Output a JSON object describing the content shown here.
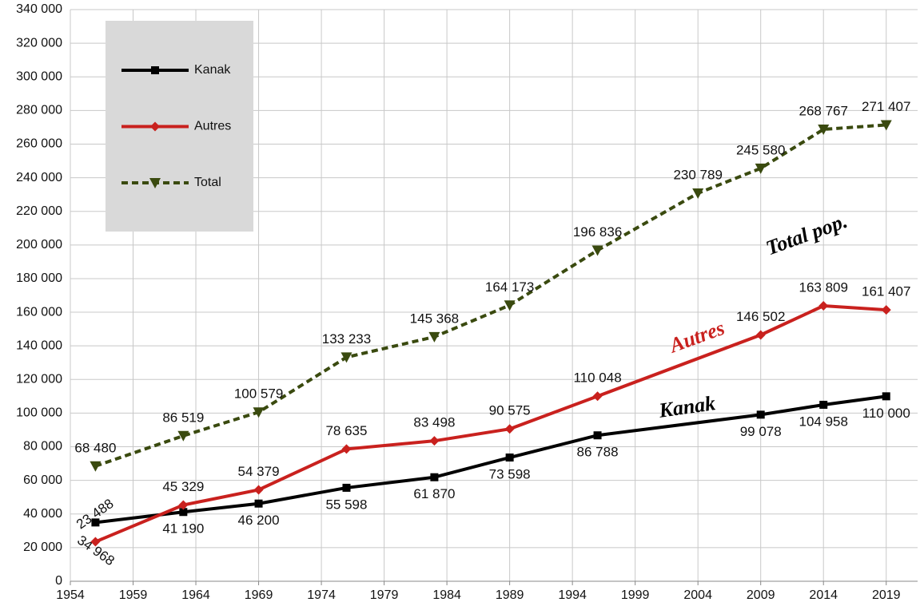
{
  "chart_data": {
    "type": "line",
    "xlim": [
      1954,
      2021.5
    ],
    "xticks": [
      1954,
      1959,
      1964,
      1969,
      1974,
      1979,
      1984,
      1989,
      1994,
      1999,
      2004,
      2009,
      2014,
      2019
    ],
    "ylim": [
      0,
      340000
    ],
    "yticks": [
      0,
      {
        "value": 20000,
        "label": "20 000"
      },
      {
        "value": 40000,
        "label": "40 000"
      },
      {
        "value": 60000,
        "label": "60 000"
      },
      {
        "value": 80000,
        "label": "80 000"
      },
      {
        "value": 100000,
        "label": "100 000"
      },
      {
        "value": 120000,
        "label": "120 000"
      },
      {
        "value": 140000,
        "label": "140 000"
      },
      {
        "value": 160000,
        "label": "160 000"
      },
      {
        "value": 180000,
        "label": "180 000"
      },
      {
        "value": 200000,
        "label": "200 000"
      },
      {
        "value": 220000,
        "label": "220 000"
      },
      {
        "value": 240000,
        "label": "240 000"
      },
      {
        "value": 260000,
        "label": "260 000"
      },
      {
        "value": 280000,
        "label": "280 000"
      },
      {
        "value": 300000,
        "label": "300 000"
      },
      {
        "value": 320000,
        "label": "320 000"
      },
      {
        "value": 340000,
        "label": "340 000"
      }
    ],
    "grid": true,
    "legend": "top-left",
    "annotations": [
      {
        "text": "Total pop.",
        "color": "#000000"
      },
      {
        "text": "Autres",
        "color": "#c9211e"
      },
      {
        "text": "Kanak",
        "color": "#000000"
      }
    ],
    "series": [
      {
        "name": "Kanak",
        "color": "#000000",
        "marker": "square",
        "dash": false,
        "x": [
          1956,
          1963,
          1969,
          1976,
          1983,
          1989,
          1996,
          2009,
          2014,
          2019
        ],
        "values": [
          34968,
          41190,
          46200,
          55598,
          61870,
          73598,
          86788,
          99078,
          104958,
          110000
        ],
        "value_labels": [
          "34 968",
          "41 190",
          "46 200",
          "55 598",
          "61 870",
          "73 598",
          "86 788",
          "99 078",
          "104 958",
          "110 000"
        ]
      },
      {
        "name": "Autres",
        "color": "#c9211e",
        "marker": "diamond",
        "dash": false,
        "x": [
          1956,
          1963,
          1969,
          1976,
          1983,
          1989,
          1996,
          2009,
          2014,
          2019
        ],
        "values": [
          23488,
          45329,
          54379,
          78635,
          83498,
          90575,
          110048,
          146502,
          163809,
          161407
        ],
        "value_labels": [
          "23 488",
          "45 329",
          "54 379",
          "78 635",
          "83 498",
          "90 575",
          "110 048",
          "146 502",
          "163 809",
          "161 407"
        ]
      },
      {
        "name": "Total",
        "color": "#3a4a0f",
        "marker": "triangle",
        "dash": true,
        "x": [
          1956,
          1963,
          1969,
          1976,
          1983,
          1989,
          1996,
          2004,
          2009,
          2014,
          2019
        ],
        "values": [
          68480,
          86519,
          100579,
          133233,
          145368,
          164173,
          196836,
          230789,
          245580,
          268767,
          271407
        ],
        "value_labels": [
          "68 480",
          "86 519",
          "100 579",
          "133 233",
          "145 368",
          "164 173",
          "196 836",
          "230 789",
          "245 580",
          "268 767",
          "271 407"
        ]
      }
    ]
  }
}
